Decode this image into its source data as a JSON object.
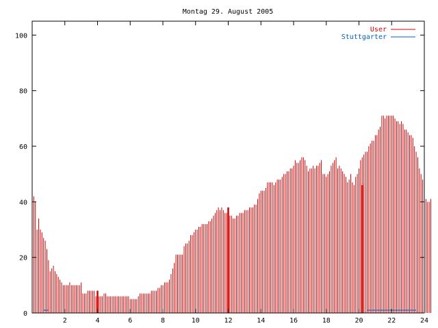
{
  "chart_data": {
    "type": "bar",
    "title": "Montag 29. August 2005",
    "xlabel": "",
    "ylabel": "",
    "xlim": [
      0,
      24
    ],
    "ylim": [
      0,
      105
    ],
    "xticks": [
      2,
      4,
      6,
      8,
      10,
      12,
      14,
      16,
      18,
      20,
      22,
      24
    ],
    "yticks": [
      0,
      20,
      40,
      60,
      80,
      100
    ],
    "legend_position": "top-right",
    "grid": false,
    "series": [
      {
        "name": "User",
        "color": "#d40000",
        "x_start": 0,
        "x_step": 0.1,
        "values": [
          43,
          42,
          40,
          30,
          34,
          30,
          29,
          27,
          26,
          23,
          19,
          15,
          16,
          17,
          15,
          14,
          13,
          12,
          11,
          10,
          10,
          10,
          10,
          11,
          10,
          10,
          10,
          10,
          10,
          10,
          11,
          7,
          7,
          7,
          8,
          8,
          8,
          8,
          8,
          6,
          6,
          6,
          6,
          6,
          7,
          7,
          6,
          6,
          6,
          6,
          6,
          6,
          6,
          6,
          6,
          6,
          6,
          6,
          6,
          6,
          5,
          5,
          5,
          5,
          5,
          6,
          7,
          7,
          7,
          7,
          7,
          7,
          7,
          8,
          8,
          8,
          8,
          9,
          9,
          10,
          10,
          11,
          11,
          11,
          12,
          14,
          16,
          18,
          21,
          21,
          21,
          21,
          21,
          24,
          25,
          25,
          26,
          28,
          28,
          29,
          30,
          30,
          31,
          31,
          32,
          32,
          32,
          32,
          33,
          33,
          34,
          35,
          36,
          37,
          38,
          37,
          38,
          37,
          36,
          36,
          35,
          35,
          35,
          34,
          34,
          35,
          35,
          36,
          36,
          36,
          37,
          37,
          37,
          38,
          38,
          38,
          39,
          39,
          41,
          43,
          44,
          44,
          44,
          45,
          47,
          47,
          47,
          47,
          46,
          47,
          48,
          48,
          48,
          49,
          50,
          50,
          51,
          51,
          52,
          52,
          53,
          55,
          54,
          54,
          55,
          56,
          56,
          55,
          53,
          51,
          52,
          52,
          53,
          52,
          53,
          53,
          54,
          55,
          50,
          50,
          49,
          50,
          51,
          53,
          54,
          55,
          56,
          52,
          53,
          52,
          51,
          50,
          49,
          47,
          48,
          50,
          47,
          46,
          49,
          50,
          52,
          55,
          56,
          57,
          58,
          58,
          60,
          61,
          62,
          62,
          64,
          64,
          66,
          67,
          71,
          71,
          70,
          71,
          71,
          71,
          71,
          71,
          70,
          69,
          69,
          68,
          69,
          68,
          66,
          66,
          65,
          64,
          64,
          63,
          60,
          58,
          56,
          52,
          50,
          48,
          47,
          41,
          40,
          40,
          41
        ],
        "thick_bars": [
          {
            "x": 4.0,
            "value": 8
          },
          {
            "x": 12.0,
            "value": 38
          },
          {
            "x": 20.2,
            "value": 46
          }
        ]
      },
      {
        "name": "Stuttgarter",
        "color": "#0060c0",
        "segments": [
          {
            "x_start": 0.7,
            "x_end": 1.0,
            "value": 1
          },
          {
            "x_start": 20.5,
            "x_end": 23.5,
            "value": 1
          }
        ]
      }
    ]
  }
}
